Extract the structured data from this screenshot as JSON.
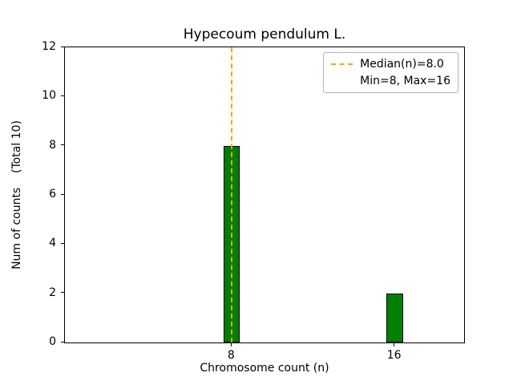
{
  "figure": {
    "background": "#ffffff"
  },
  "chart_data": {
    "type": "bar",
    "title": "Hypecoum pendulum L.",
    "xlabel": "Chromosome count (n)",
    "ylabel": "Num of counts    (Total 10)",
    "x": [
      8,
      16
    ],
    "values": [
      8,
      2
    ],
    "bar_color": "#008000",
    "bar_edge_color": "#000000",
    "bar_width_units": 0.8,
    "xlim": [
      -0.2,
      19.4
    ],
    "ylim": [
      0,
      12
    ],
    "yticks": [
      0,
      2,
      4,
      6,
      8,
      10,
      12
    ],
    "xticks": [
      8,
      16
    ],
    "grid": false,
    "median_line": {
      "x": 8,
      "color": "#FFA500",
      "style": "dashed"
    },
    "legend": {
      "position": "upper right",
      "items": [
        {
          "label": "Median(n)=8.0",
          "marker": "dashed-line",
          "color": "#FFA500"
        },
        {
          "label": "Min=8, Max=16",
          "marker": "none",
          "color": ""
        }
      ]
    }
  }
}
